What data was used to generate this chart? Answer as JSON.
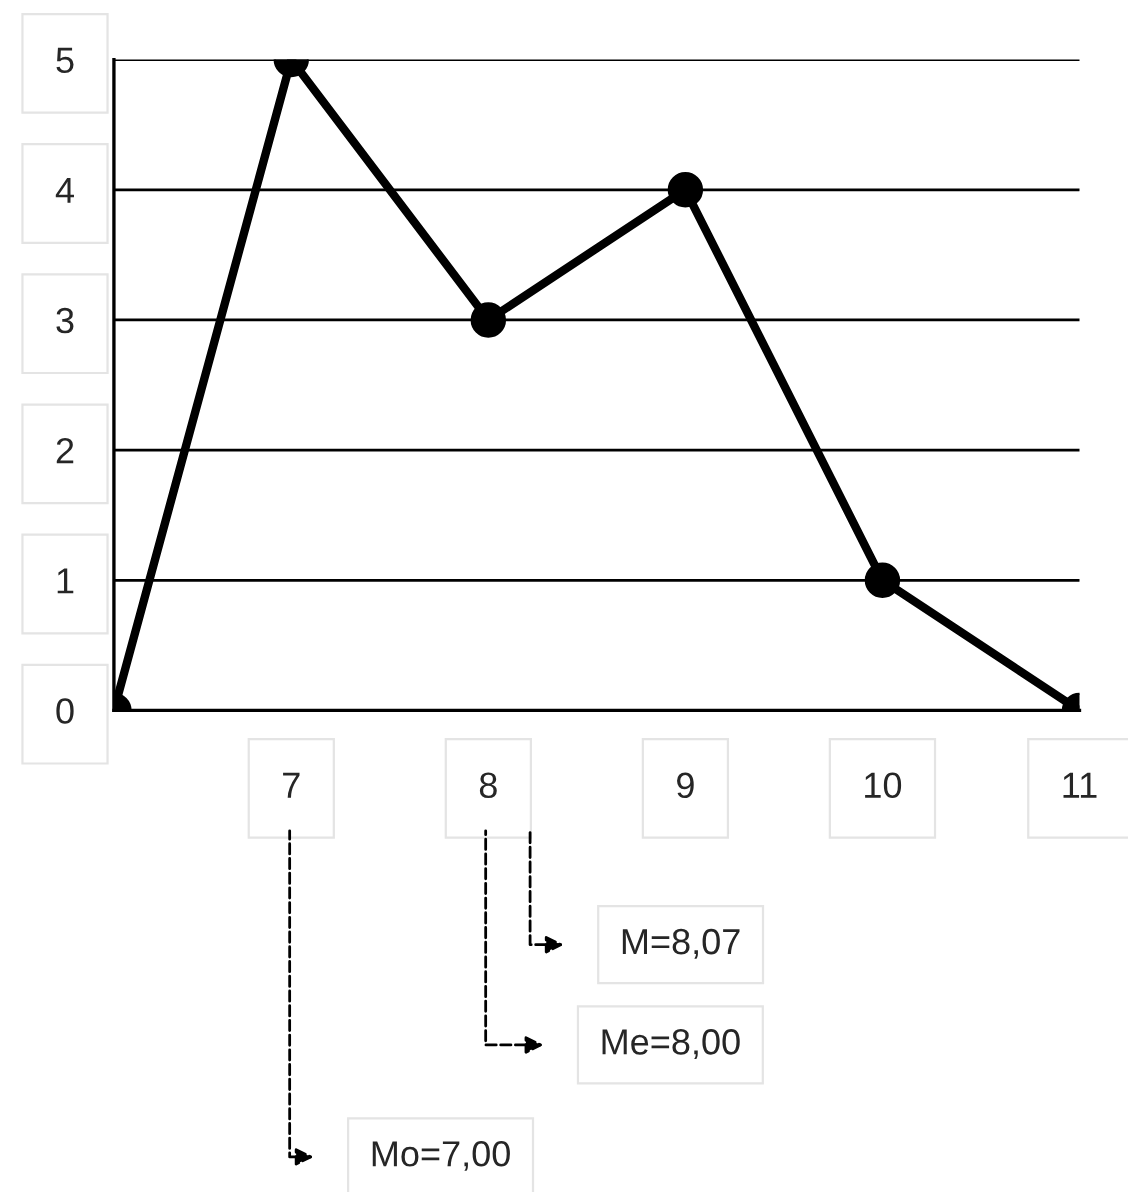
{
  "chart_data": {
    "type": "line",
    "x": [
      6.1,
      7,
      8,
      9,
      10,
      11
    ],
    "values": [
      0,
      5,
      3,
      4,
      1,
      0
    ],
    "color": "#000000",
    "marker": "circle",
    "xlim": [
      6.1,
      11
    ],
    "xticks": [
      7,
      8,
      9,
      10,
      11
    ],
    "ylim": [
      0,
      5
    ],
    "yticks": [
      0,
      1,
      2,
      3,
      4,
      5
    ],
    "grid": "y",
    "annotations": [
      "M=8,07",
      "Me=8,00",
      "Mo=7,00"
    ]
  }
}
